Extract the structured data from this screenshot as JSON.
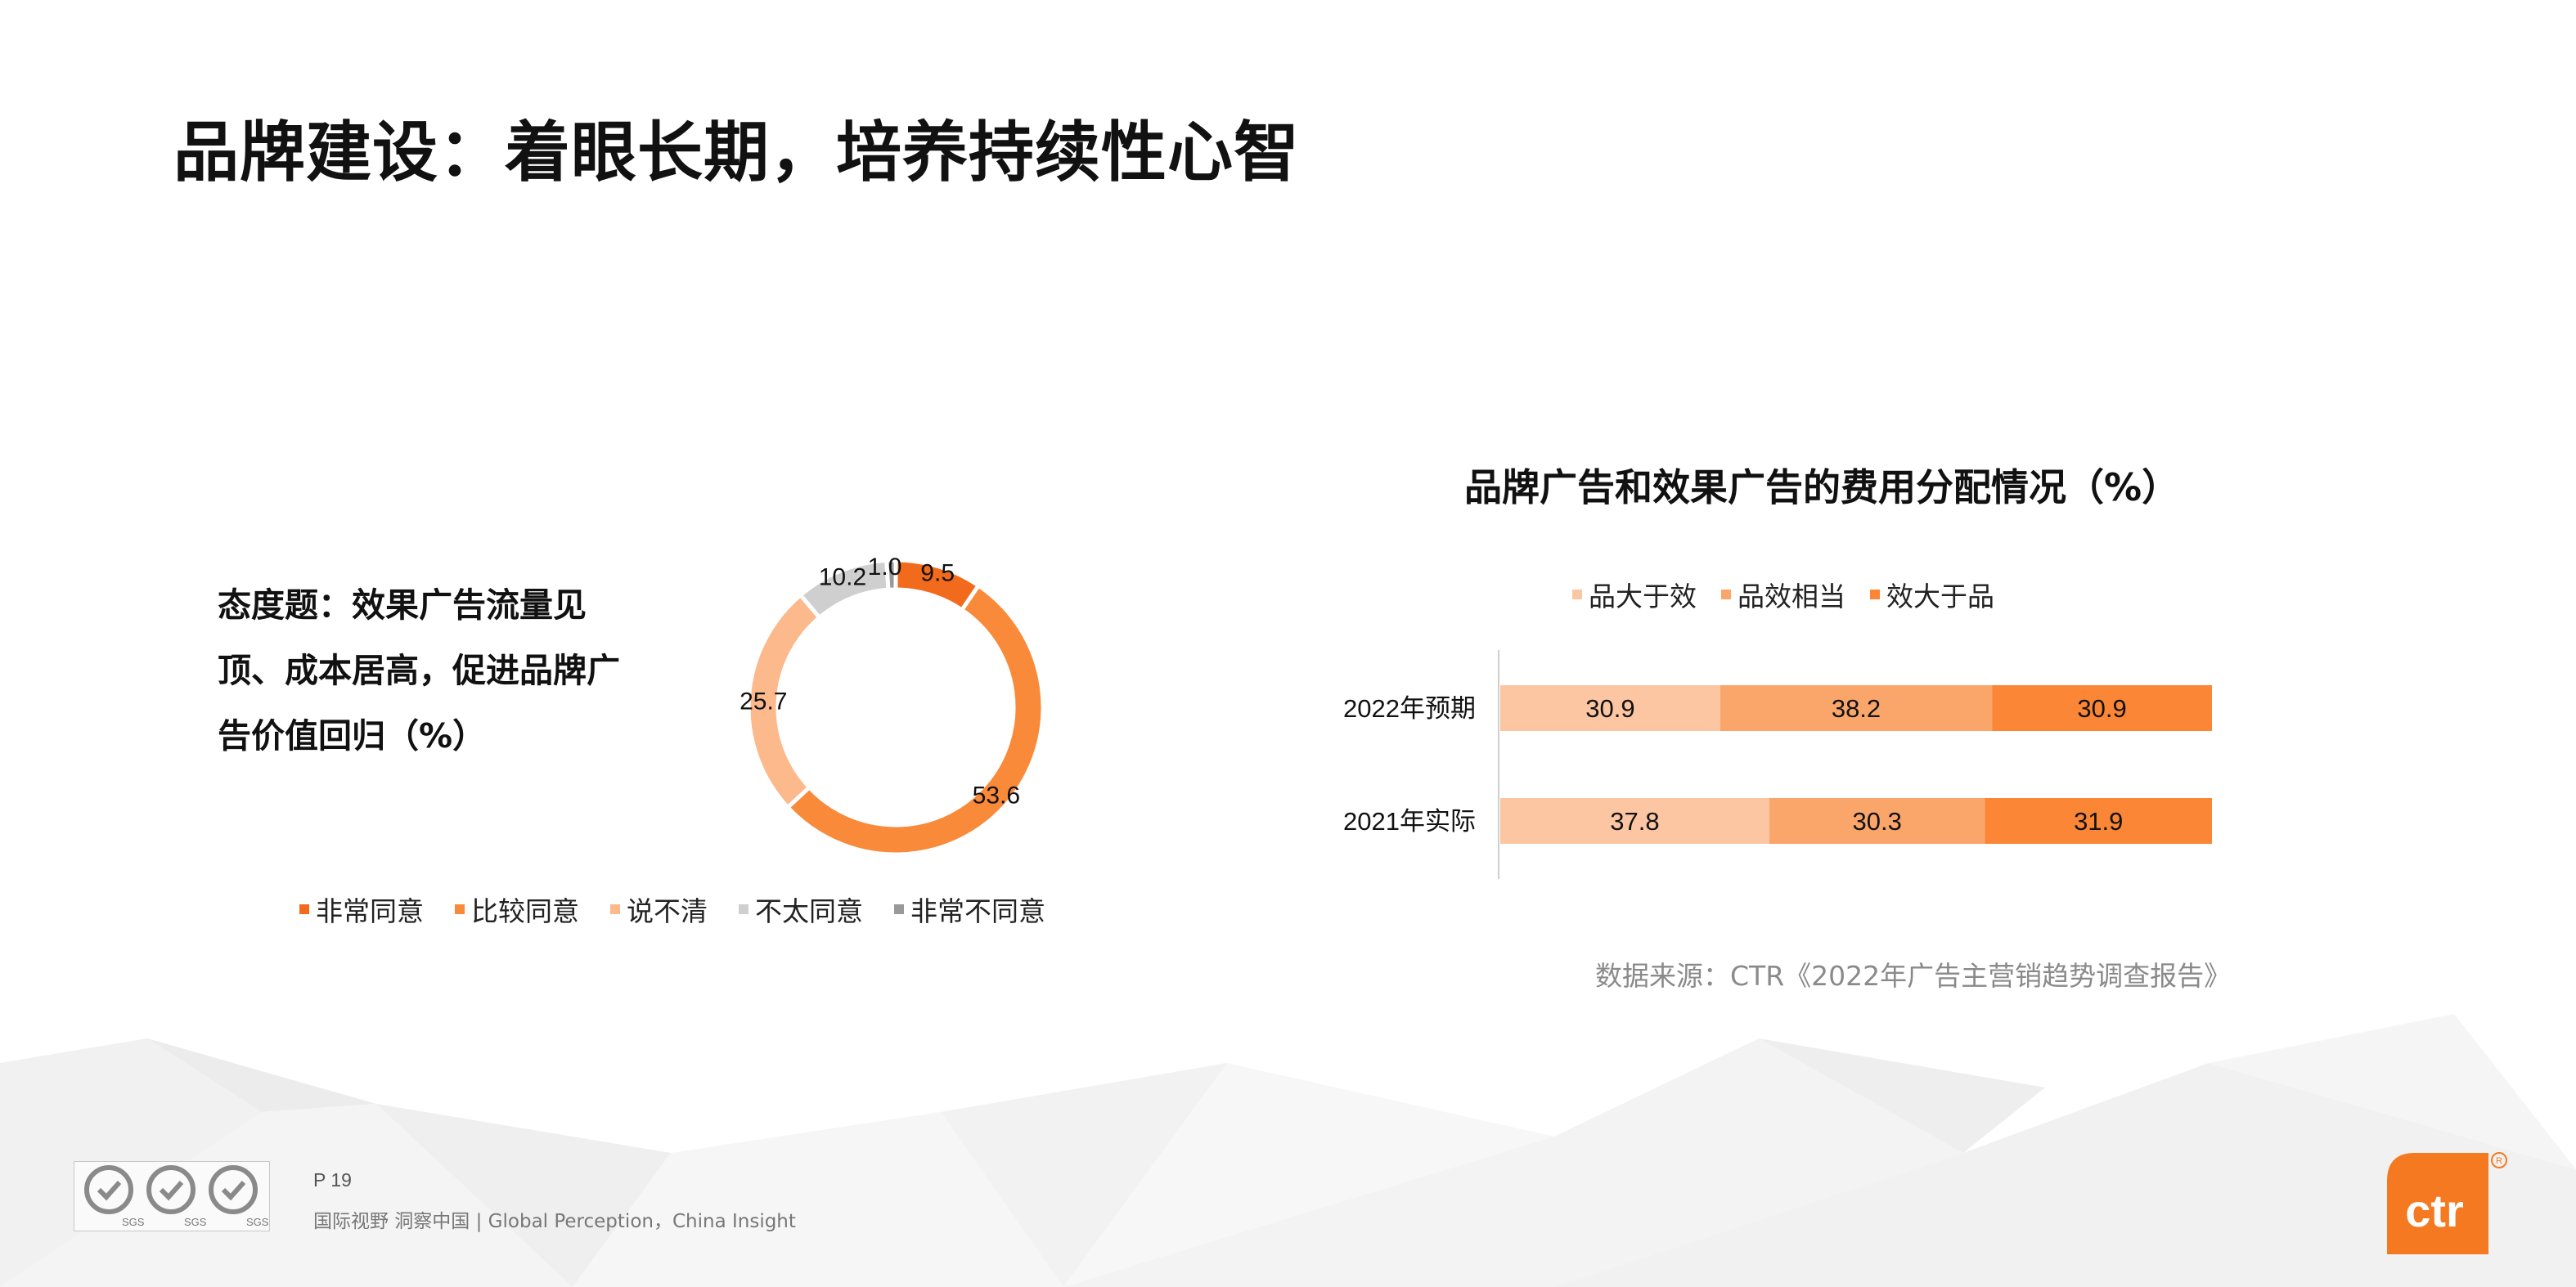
{
  "page": {
    "title": "品牌建设：着眼长期，培养持续性心智",
    "page_number": "P 19",
    "slogan": "国际视野  洞察中国 |  Global Perception，China Insight",
    "source": "数据来源：CTR《2022年广告主营销趋势调查报告》",
    "logo_text": "ctr",
    "cert_label": "SGS"
  },
  "left_question": "态度题：效果广告流量见顶、成本居高，促进品牌广告价值回归（%）",
  "colors": {
    "very_agree": "#f26a1b",
    "agree": "#f98a3a",
    "unsure": "#fbb98c",
    "disagree": "#cfcfcf",
    "strong_disagree": "#999999",
    "brand_gt": "#fcc6a3",
    "equal": "#faa66b",
    "effect_gt": "#fb8635",
    "logo": "#f47920"
  },
  "chart_data": [
    {
      "type": "pie",
      "title": "",
      "labels": [
        "非常同意",
        "比较同意",
        "说不清",
        "不太同意",
        "非常不同意"
      ],
      "values": [
        9.5,
        53.6,
        25.7,
        10.2,
        1.0
      ],
      "value_labels": [
        "9.5",
        "53.6",
        "25.7",
        "10.2",
        "1.0"
      ],
      "donut": true,
      "legend_position": "bottom"
    },
    {
      "type": "bar",
      "orientation": "horizontal",
      "stacked": true,
      "title": "品牌广告和效果广告的费用分配情况（%）",
      "categories": [
        "2022年预期",
        "2021年实际"
      ],
      "series": [
        {
          "name": "品大于效",
          "values": [
            30.9,
            37.8
          ]
        },
        {
          "name": "品效相当",
          "values": [
            38.2,
            30.3
          ]
        },
        {
          "name": "效大于品",
          "values": [
            30.9,
            31.9
          ]
        }
      ],
      "legend_position": "top",
      "grid": false
    }
  ]
}
